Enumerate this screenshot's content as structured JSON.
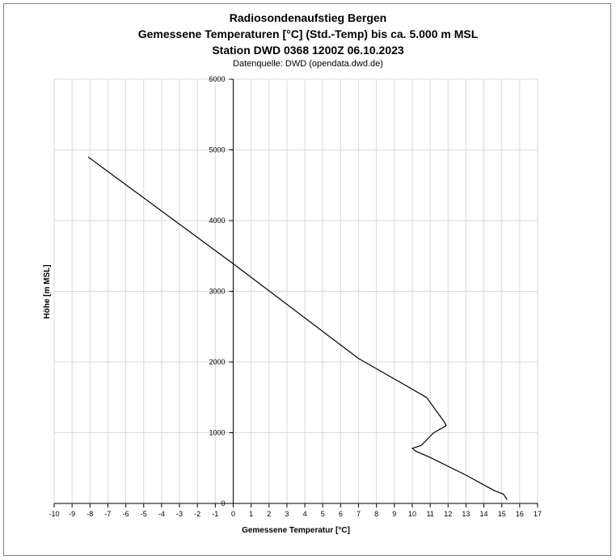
{
  "chart_data": {
    "type": "line",
    "title": "Radiosondenaufstieg Bergen",
    "subtitle": "Gemessene Temperaturen [°C] (Std.-Temp) bis ca. 5.000 m MSL",
    "subtitle2": "Station DWD 0368 1200Z 06.10.2023",
    "source": "Datenquelle: DWD (opendata.dwd.de)",
    "xlabel": "Gemessene Temperatur [°C]",
    "ylabel": "Höhe [m MSL]",
    "xlim": [
      -10,
      17
    ],
    "ylim": [
      0,
      6000
    ],
    "xticks": [
      -10,
      -9,
      -8,
      -7,
      -6,
      -5,
      -4,
      -3,
      -2,
      -1,
      0,
      1,
      2,
      3,
      4,
      5,
      6,
      7,
      8,
      9,
      10,
      11,
      12,
      13,
      14,
      15,
      16,
      17
    ],
    "yticks": [
      0,
      1000,
      2000,
      3000,
      4000,
      5000,
      6000
    ],
    "grid": true,
    "line_color": "#000000",
    "grid_color": "#d9d9d9",
    "series": [
      {
        "x": [
          15.3,
          15.1,
          14.6,
          13.0,
          11.0,
          10.2,
          10.0,
          10.5,
          11.2,
          11.9,
          11.8,
          10.8,
          7.0,
          0.0,
          -8.1
        ],
        "y": [
          50,
          130,
          180,
          400,
          650,
          740,
          780,
          820,
          1000,
          1100,
          1150,
          1500,
          2050,
          3390,
          4900
        ]
      }
    ]
  }
}
